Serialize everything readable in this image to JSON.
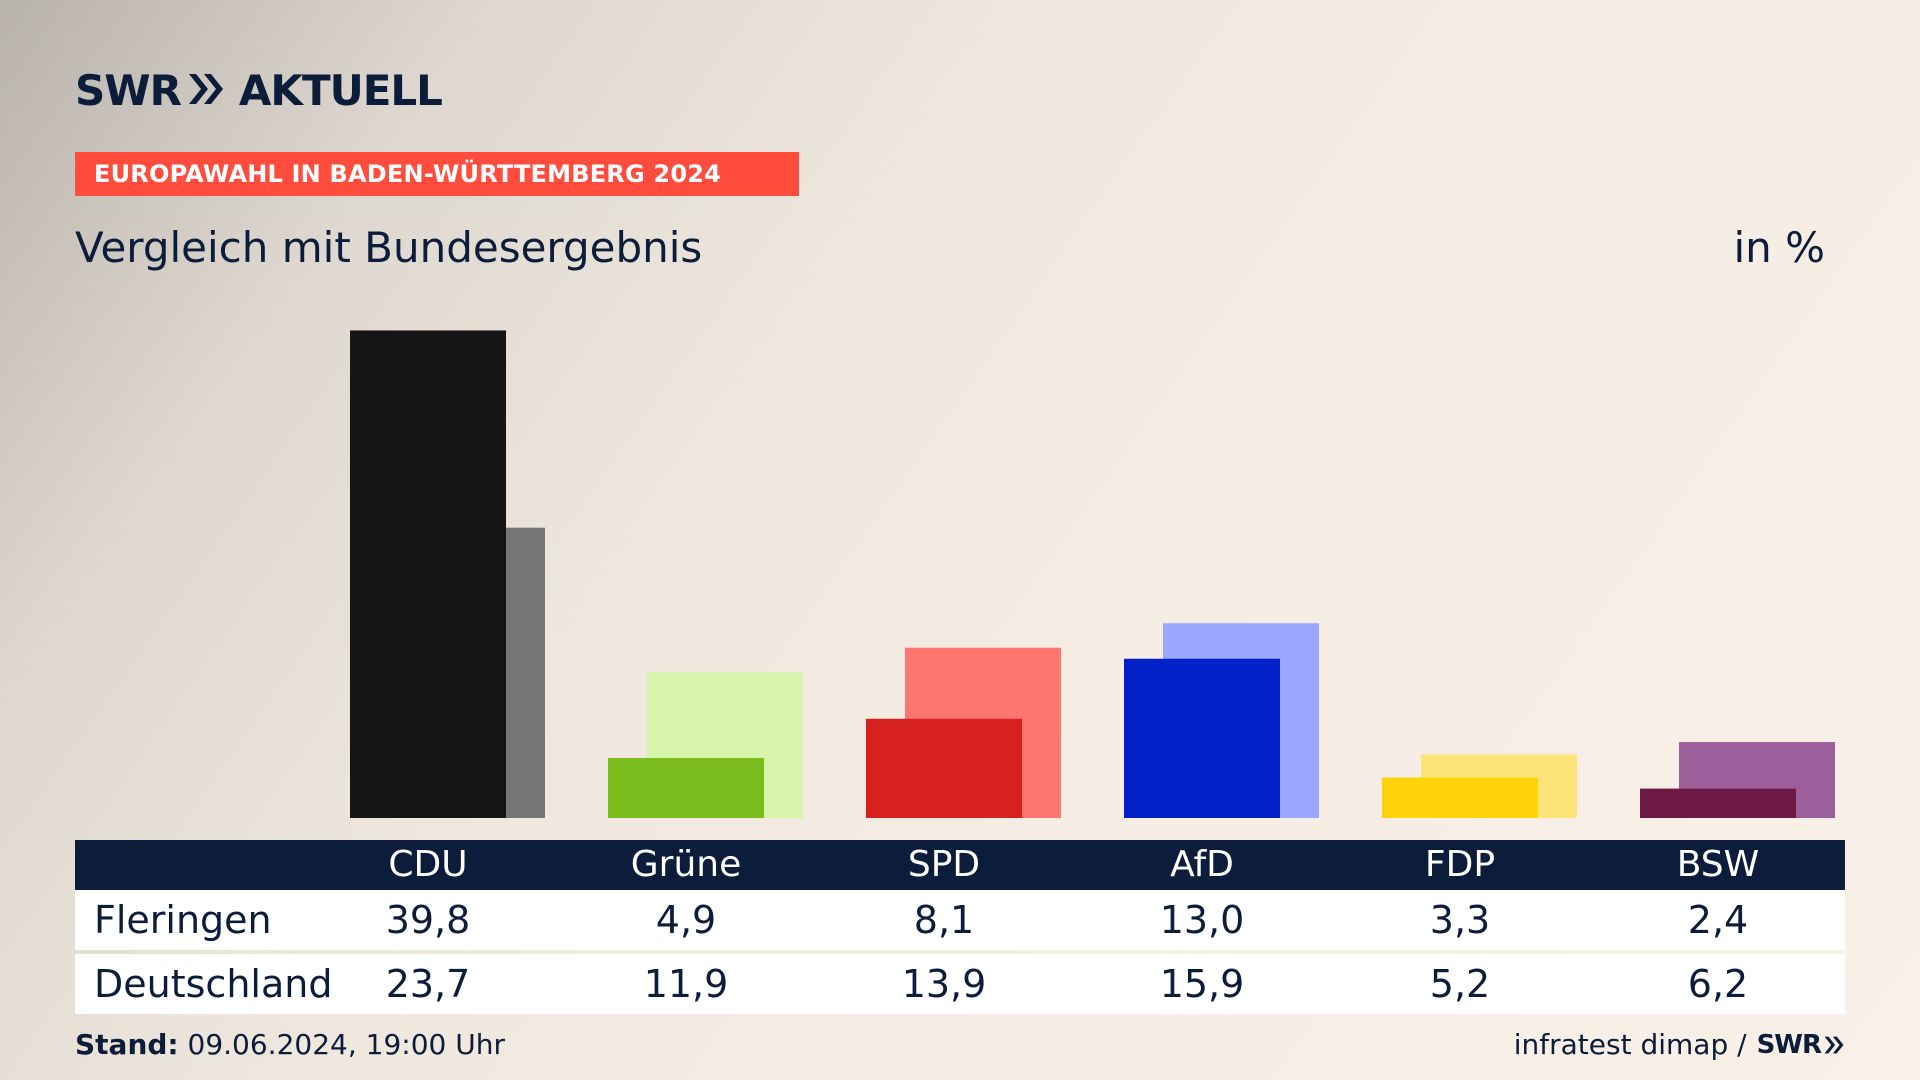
{
  "header": {
    "brand_left": "SWR",
    "brand_right": "AKTUELL",
    "banner": "EUROPAWAHL IN BADEN-WÜRTTEMBERG 2024",
    "subtitle": "Vergleich mit Bundesergebnis",
    "unit": "in %"
  },
  "footer": {
    "stand_label": "Stand:",
    "stand_value": " 09.06.2024, 19:00 Uhr",
    "source": "infratest dimap /",
    "source_brand": "SWR"
  },
  "colors": {
    "navy": "#0c1c3b",
    "banner_red": "#ff4c3d"
  },
  "table": {
    "rows": [
      {
        "label": "Fleringen",
        "values": [
          "39,8",
          "4,9",
          "8,1",
          "13,0",
          "3,3",
          "2,4"
        ]
      },
      {
        "label": "Deutschland",
        "values": [
          "23,7",
          "11,9",
          "13,9",
          "15,9",
          "5,2",
          "6,2"
        ]
      }
    ]
  },
  "chart_data": {
    "type": "bar",
    "categories": [
      "CDU",
      "Grüne",
      "SPD",
      "AfD",
      "FDP",
      "BSW"
    ],
    "series": [
      {
        "name": "Fleringen",
        "values": [
          39.8,
          4.9,
          8.1,
          13.0,
          3.3,
          2.4
        ],
        "colors": [
          "#151515",
          "#7abd1d",
          "#d7211f",
          "#0021c8",
          "#ffd20a",
          "#6e1844"
        ]
      },
      {
        "name": "Deutschland",
        "values": [
          23.7,
          11.9,
          13.9,
          15.9,
          5.2,
          6.2
        ],
        "colors": [
          "#767676",
          "#d7f4ab",
          "#ff7570",
          "#9aa9ff",
          "#ffe47a",
          "#9c5f9b"
        ]
      }
    ],
    "ylim": [
      0,
      40
    ],
    "grid": false,
    "legend": "none"
  }
}
